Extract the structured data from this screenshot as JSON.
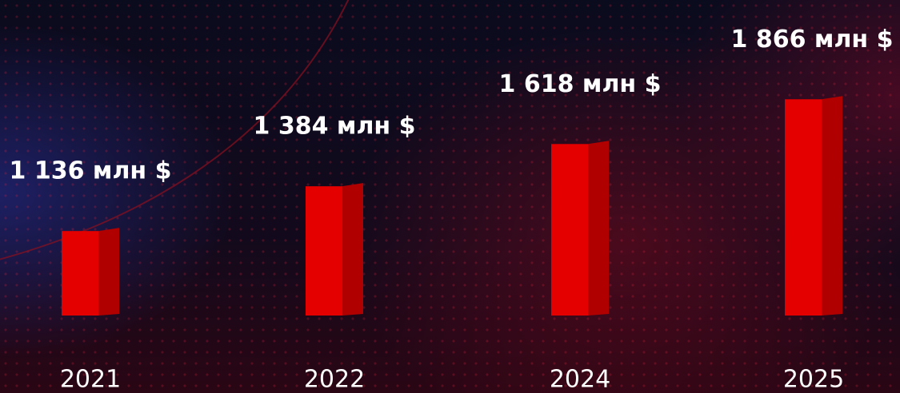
{
  "chart_data": {
    "type": "bar",
    "categories": [
      "2021",
      "2022",
      "2024",
      "2025"
    ],
    "values": [
      1136,
      1384,
      1618,
      1866
    ],
    "value_labels": [
      "1 136 млн $",
      "1 384 млн $",
      "1 618 млн $",
      "1 866 млн $"
    ],
    "color": "#e50000",
    "ylim": [
      650,
      2000
    ]
  }
}
